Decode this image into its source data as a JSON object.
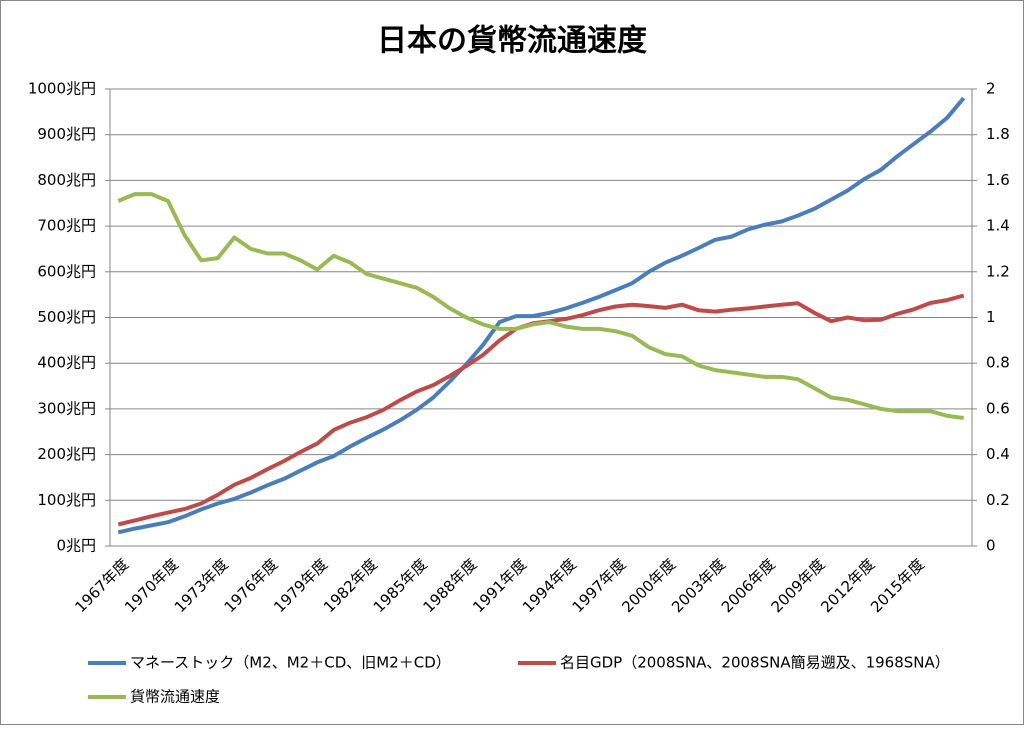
{
  "chart_data": {
    "type": "line",
    "title": "日本の貨幣流通速度",
    "categories": [
      "1967年度",
      null,
      null,
      "1970年度",
      null,
      null,
      "1973年度",
      null,
      null,
      "1976年度",
      null,
      null,
      "1979年度",
      null,
      null,
      "1982年度",
      null,
      null,
      "1985年度",
      null,
      null,
      "1988年度",
      null,
      null,
      "1991年度",
      null,
      null,
      "1994年度",
      null,
      null,
      "1997年度",
      null,
      null,
      "2000年度",
      null,
      null,
      "2003年度",
      null,
      null,
      "2006年度",
      null,
      null,
      "2009年度",
      null,
      null,
      "2012年度",
      null,
      null,
      "2015年度",
      null,
      null,
      null
    ],
    "series": [
      {
        "name": "マネーストック（M2、M2＋CD、旧M2＋CD）",
        "color": "#4a7ebb",
        "values": [
          30,
          38,
          45,
          52,
          65,
          80,
          93,
          103,
          117,
          133,
          147,
          165,
          183,
          197,
          218,
          237,
          255,
          275,
          298,
          325,
          360,
          398,
          440,
          490,
          503,
          503,
          510,
          520,
          532,
          545,
          560,
          575,
          600,
          620,
          635,
          652,
          670,
          677,
          693,
          703,
          710,
          723,
          738,
          758,
          778,
          803,
          823,
          853,
          880,
          907,
          937,
          980
        ]
      },
      {
        "name": "名目GDP（2008SNA、2008SNA簡易遡及、1968SNA）",
        "color": "#be4b48",
        "values": [
          47,
          56,
          65,
          73,
          81,
          93,
          112,
          134,
          149,
          168,
          186,
          206,
          224,
          254,
          270,
          282,
          298,
          319,
          338,
          352,
          372,
          394,
          418,
          450,
          475,
          487,
          492,
          497,
          505,
          516,
          524,
          528,
          525,
          521,
          528,
          516,
          513,
          517,
          520,
          524,
          528,
          531,
          510,
          492,
          500,
          494,
          495,
          508,
          518,
          532,
          538,
          548
        ]
      },
      {
        "name": "貨幣流通速度",
        "color": "#98b954",
        "axis": "y2",
        "values": [
          1.51,
          1.54,
          1.54,
          1.51,
          1.36,
          1.25,
          1.26,
          1.35,
          1.3,
          1.28,
          1.28,
          1.25,
          1.21,
          1.27,
          1.24,
          1.19,
          1.17,
          1.15,
          1.13,
          1.09,
          1.04,
          1.0,
          0.97,
          0.95,
          0.95,
          0.97,
          0.98,
          0.96,
          0.95,
          0.95,
          0.94,
          0.92,
          0.87,
          0.84,
          0.83,
          0.79,
          0.77,
          0.76,
          0.75,
          0.74,
          0.74,
          0.73,
          0.69,
          0.65,
          0.64,
          0.62,
          0.6,
          0.59,
          0.59,
          0.59,
          0.57,
          0.56
        ]
      }
    ],
    "ylim": [
      0,
      1000
    ],
    "yticks": [
      {
        "value": 0,
        "label": "0兆円"
      },
      {
        "value": 100,
        "label": "100兆円"
      },
      {
        "value": 200,
        "label": "200兆円"
      },
      {
        "value": 300,
        "label": "300兆円"
      },
      {
        "value": 400,
        "label": "400兆円"
      },
      {
        "value": 500,
        "label": "500兆円"
      },
      {
        "value": 600,
        "label": "600兆円"
      },
      {
        "value": 700,
        "label": "700兆円"
      },
      {
        "value": 800,
        "label": "800兆円"
      },
      {
        "value": 900,
        "label": "900兆円"
      },
      {
        "value": 1000,
        "label": "1000兆円"
      }
    ],
    "y2lim": [
      0,
      2
    ],
    "y2ticks": [
      0,
      0.2,
      0.4,
      0.6,
      0.8,
      1,
      1.2,
      1.4,
      1.6,
      1.8,
      2
    ],
    "grid": true
  }
}
